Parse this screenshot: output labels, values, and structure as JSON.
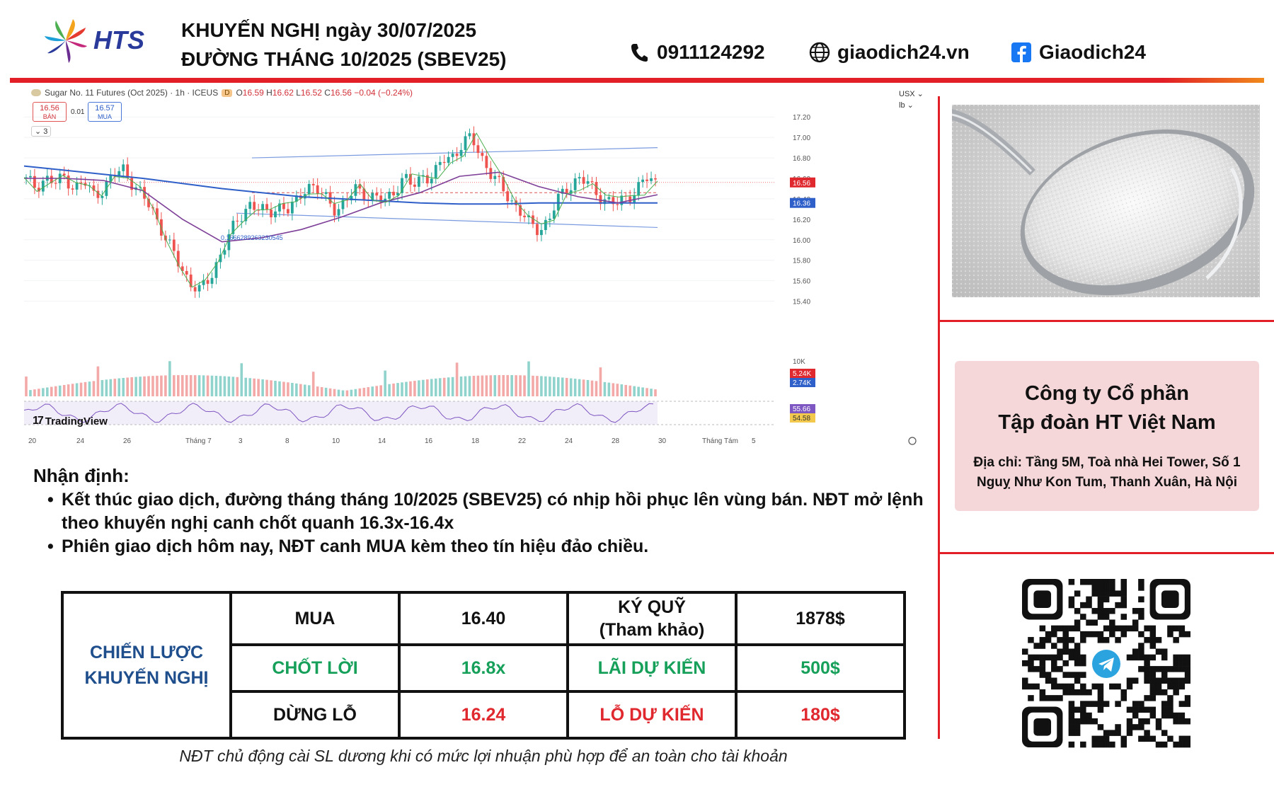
{
  "brand": {
    "logo_text": "HTS",
    "logo_icon": "pinwheel-logo-icon",
    "accent_red": "#e21f26",
    "accent_orange": "#f08a1c",
    "navy": "#1f4e8c"
  },
  "header": {
    "title_line1": "KHUYẾN NGHỊ ngày 30/07/2025",
    "title_line2": "ĐƯỜNG THÁNG 10/2025 (SBEV25)",
    "phone": "0911124292",
    "website": "giaodich24.vn",
    "facebook": "Giaodich24",
    "phone_icon": "phone-icon",
    "web_icon": "globe-icon",
    "fb_icon": "facebook-icon"
  },
  "chart_data": {
    "type": "candlestick",
    "symbol_line": "Sugar No. 11 Futures (Oct 2025) · 1h · ICEUS",
    "badge": "D",
    "ohlc": {
      "o_label": "O",
      "o": "16.59",
      "h_label": "H",
      "h": "16.62",
      "l_label": "L",
      "l": "16.52",
      "c_label": "C",
      "c": "16.56",
      "chg": "−0.04 (−0.24%)"
    },
    "sell": {
      "price": "16.56",
      "label": "BÁN"
    },
    "buy": {
      "price": "16.57",
      "label": "MUA"
    },
    "spread": "0.01",
    "collapse_count": "3",
    "currency": "USX",
    "unit": "lb",
    "price_axis": [
      "17.20",
      "17.00",
      "16.80",
      "16.60",
      "16.40",
      "16.20",
      "16.00",
      "15.80",
      "15.60",
      "15.40"
    ],
    "ylim": [
      15.3,
      17.25
    ],
    "price_tags": [
      {
        "value": "16.56",
        "color": "#e0282f"
      },
      {
        "value": "16.36",
        "color": "#2f5fc8"
      }
    ],
    "volume_axis": "10K",
    "volume_tags": [
      {
        "value": "5.24K",
        "color": "#e0282f"
      },
      {
        "value": "2.74K",
        "color": "#2f5fc8"
      }
    ],
    "osc_tags": [
      {
        "value": "55.66",
        "color": "#7e57c2"
      },
      {
        "value": "54.58",
        "color": "#f2c94c"
      }
    ],
    "fib_label": "0.1666289263230545",
    "date_axis": [
      "20",
      "24",
      "26",
      "Tháng 7",
      "3",
      "8",
      "10",
      "14",
      "16",
      "18",
      "22",
      "24",
      "28",
      "30",
      "Tháng Tám",
      "5"
    ],
    "close_path": [
      16.58,
      16.52,
      16.6,
      16.55,
      16.62,
      16.5,
      16.56,
      16.44,
      16.5,
      16.62,
      16.7,
      16.55,
      16.42,
      16.3,
      16.1,
      15.9,
      15.72,
      15.58,
      15.5,
      15.62,
      15.85,
      16.05,
      16.2,
      16.36,
      16.3,
      16.25,
      16.34,
      16.28,
      16.38,
      16.55,
      16.48,
      16.4,
      16.3,
      16.36,
      16.5,
      16.45,
      16.4,
      16.38,
      16.48,
      16.6,
      16.52,
      16.64,
      16.6,
      16.78,
      16.82,
      16.92,
      17.0,
      16.82,
      16.64,
      16.52,
      16.4,
      16.28,
      16.15,
      16.1,
      16.2,
      16.4,
      16.52,
      16.6,
      16.55,
      16.45,
      16.38,
      16.34,
      16.42,
      16.48,
      16.6,
      16.56
    ],
    "ma_slow": [
      16.72,
      16.68,
      16.64,
      16.6,
      16.55,
      16.5,
      16.46,
      16.42,
      16.4,
      16.38,
      16.36,
      16.35,
      16.35,
      16.36,
      16.36,
      16.36,
      16.36
    ],
    "ma_mid": [
      16.6,
      16.6,
      16.58,
      16.48,
      16.2,
      15.98,
      16.02,
      16.1,
      16.22,
      16.36,
      16.46,
      16.62,
      16.66,
      16.52,
      16.42,
      16.36,
      16.44
    ],
    "channel_upper": [
      16.8,
      16.9
    ],
    "channel_lower": [
      16.26,
      16.12
    ],
    "dashed_level": 16.46,
    "brand": "TradingView",
    "grid": true
  },
  "right_panel": {
    "company_line1": "Công ty Cổ phần",
    "company_line2": "Tập đoàn HT Việt Nam",
    "address_line1": "Địa chỉ: Tầng 5M, Toà nhà Hei Tower, Số 1",
    "address_line2": "Nguỵ Như Kon Tum, Thanh Xuân, Hà Nội",
    "qr_icon": "telegram-qr-code"
  },
  "analysis": {
    "heading": "Nhận định:",
    "bullets": [
      "Kết thúc giao dịch, đường tháng tháng 10/2025 (SBEV25) có nhịp hồi phục lên vùng bán. NĐT mở lệnh theo khuyến nghị canh chốt quanh 16.3x-16.4x",
      "Phiên giao dịch hôm nay, NĐT canh MUA kèm theo tín hiệu đảo chiều."
    ]
  },
  "strategy": {
    "row_header_line1": "CHIẾN LƯỢC",
    "row_header_line2": "KHUYẾN NGHỊ",
    "rows": [
      {
        "label": "MUA",
        "value": "16.40",
        "label2_line1": "KÝ QUỸ",
        "label2_line2": "(Tham khảo)",
        "value2": "1878$"
      },
      {
        "label": "CHỐT LỜI",
        "value": "16.8x",
        "label2": "LÃI DỰ KIẾN",
        "value2": "500$"
      },
      {
        "label": "DỪNG LỖ",
        "value": "16.24",
        "label2": "LỖ DỰ KIẾN",
        "value2": "180$"
      }
    ],
    "footnote": "NĐT chủ động cài SL dương khi có mức lợi nhuận phù hợp để an toàn cho tài khoản"
  }
}
